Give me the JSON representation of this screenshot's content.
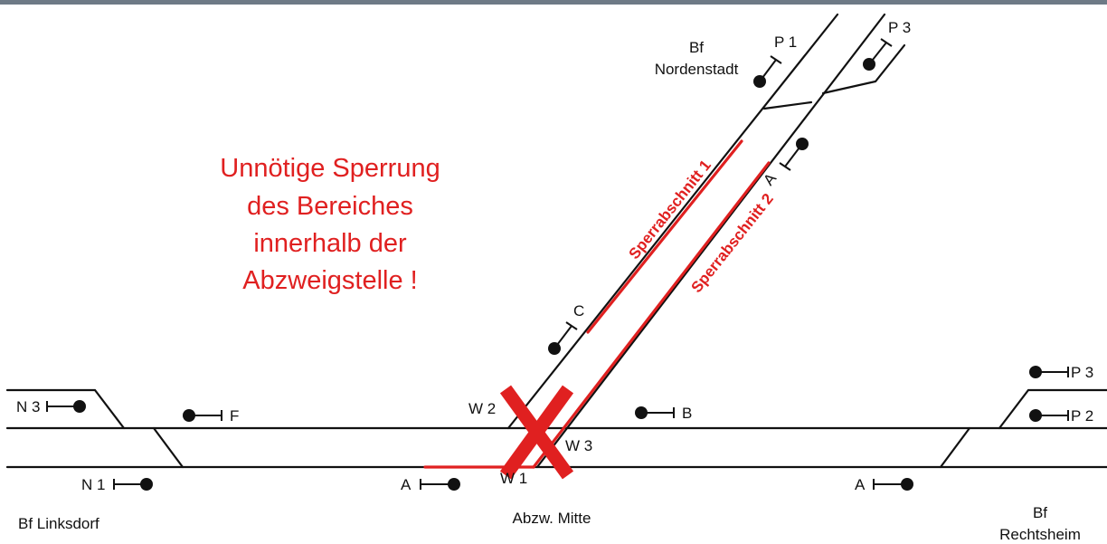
{
  "colors": {
    "track": "#111111",
    "closure": "#e02020",
    "top_border": "#6e7a86"
  },
  "stations": {
    "nordenstadt": {
      "line1": "Bf",
      "line2": "Nordenstadt"
    },
    "linksdorf": "Bf Linksdorf",
    "mitte": "Abzw. Mitte",
    "rechtsheim": {
      "line1": "Bf",
      "line2": "Rechtsheim"
    }
  },
  "note": {
    "lines": [
      "Unnötige Sperrung",
      "des Bereiches",
      "innerhalb der",
      "Abzweigstelle !"
    ]
  },
  "sections": {
    "s1": "Sperrabschnitt 1",
    "s2": "Sperrabschnitt 2"
  },
  "signals": {
    "p1": "P 1",
    "p3_north": "P 3",
    "a_north": "A",
    "c": "C",
    "n3": "N 3",
    "f": "F",
    "b": "B",
    "n1": "N 1",
    "a_mid": "A",
    "a_right": "A",
    "p3_right": "P 3",
    "p2_right": "P 2"
  },
  "switches": {
    "w1": "W 1",
    "w2": "W 2",
    "w3": "W 3"
  }
}
